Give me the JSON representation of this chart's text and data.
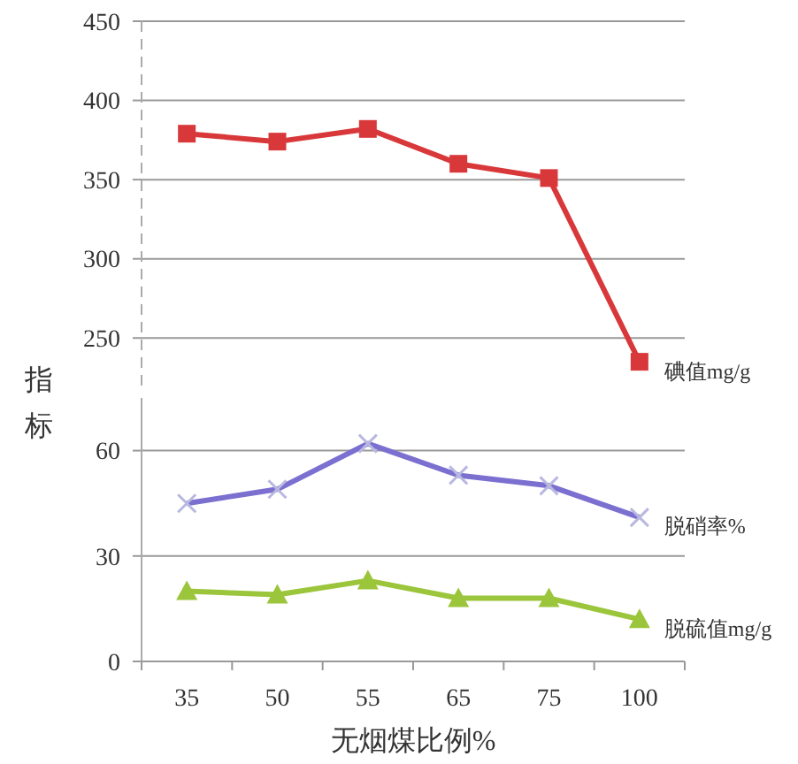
{
  "chart_data": [
    {
      "type": "line",
      "ylabel": "指标",
      "categories": [
        "35",
        "50",
        "55",
        "65",
        "75",
        "100"
      ],
      "ylim": [
        220,
        450
      ],
      "yticks": [
        250,
        300,
        350,
        400,
        450
      ],
      "grid": "y",
      "tick_labels": "y",
      "series": [
        {
          "name": "碘值mg/g",
          "color": "#d9383a",
          "marker": "square",
          "values": [
            379,
            374,
            382,
            360,
            351,
            235
          ]
        }
      ]
    },
    {
      "type": "line",
      "xlabel": "无烟煤比例%",
      "categories": [
        "35",
        "50",
        "55",
        "65",
        "75",
        "100"
      ],
      "ylim": [
        0,
        75
      ],
      "yticks": [
        0,
        30,
        60
      ],
      "grid": "y",
      "series": [
        {
          "name": "脱硝率%",
          "color": "#7b6fd0",
          "marker": "cross",
          "values": [
            45,
            49,
            62,
            53,
            50,
            41
          ]
        },
        {
          "name": "脱硫值mg/g",
          "color": "#9bc53a",
          "marker": "triangle",
          "values": [
            20,
            19,
            23,
            18,
            18,
            12
          ]
        }
      ]
    }
  ]
}
